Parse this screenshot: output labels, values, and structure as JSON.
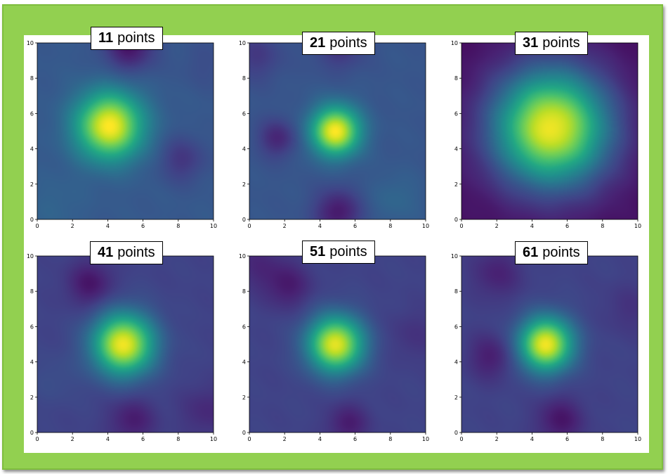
{
  "chart_data": [
    {
      "type": "heatmap",
      "title_number": "11",
      "title_unit": "points",
      "xlim": [
        0,
        10
      ],
      "ylim": [
        0,
        10
      ],
      "xticks": [
        "0",
        "2",
        "4",
        "6",
        "8",
        "10"
      ],
      "yticks": [
        "0",
        "2",
        "4",
        "6",
        "8",
        "10"
      ],
      "colormap": "viridis",
      "value_range": [
        0,
        1
      ],
      "background_level": 0.28,
      "features": [
        {
          "x": 4.1,
          "y": 5.3,
          "amplitude": 0.72,
          "spread": 1.3
        },
        {
          "x": 5.2,
          "y": 9.8,
          "amplitude": -0.22,
          "spread": 1.0
        },
        {
          "x": 8.2,
          "y": 3.4,
          "amplitude": -0.12,
          "spread": 0.9
        },
        {
          "x": 1.0,
          "y": 0.8,
          "amplitude": 0.04,
          "spread": 1.2
        },
        {
          "x": 9.5,
          "y": 8.8,
          "amplitude": -0.04,
          "spread": 1.0
        }
      ]
    },
    {
      "type": "heatmap",
      "title_number": "21",
      "title_unit": "points",
      "xlim": [
        0,
        10
      ],
      "ylim": [
        0,
        10
      ],
      "xticks": [
        "0",
        "2",
        "4",
        "6",
        "8",
        "10"
      ],
      "yticks": [
        "0",
        "2",
        "4",
        "6",
        "8",
        "10"
      ],
      "colormap": "viridis",
      "value_range": [
        0,
        1
      ],
      "background_level": 0.27,
      "features": [
        {
          "x": 4.9,
          "y": 5.0,
          "amplitude": 0.73,
          "spread": 0.95
        },
        {
          "x": 1.6,
          "y": 4.6,
          "amplitude": -0.16,
          "spread": 0.75
        },
        {
          "x": 5.0,
          "y": 0.4,
          "amplitude": -0.2,
          "spread": 0.9
        },
        {
          "x": 8.3,
          "y": 1.2,
          "amplitude": 0.06,
          "spread": 1.0
        },
        {
          "x": 5.1,
          "y": 9.9,
          "amplitude": -0.12,
          "spread": 1.0
        },
        {
          "x": 0.4,
          "y": 9.3,
          "amplitude": -0.1,
          "spread": 1.0
        }
      ]
    },
    {
      "type": "heatmap",
      "title_number": "31",
      "title_unit": "points",
      "xlim": [
        0,
        10
      ],
      "ylim": [
        0,
        10
      ],
      "xticks": [
        "0",
        "2",
        "4",
        "6",
        "8",
        "10"
      ],
      "yticks": [
        "0",
        "2",
        "4",
        "6",
        "8",
        "10"
      ],
      "colormap": "viridis",
      "value_range": [
        0,
        1
      ],
      "background_level": 0.04,
      "features": [
        {
          "x": 5.1,
          "y": 5.2,
          "amplitude": 0.94,
          "spread": 2.25
        }
      ]
    },
    {
      "type": "heatmap",
      "title_number": "41",
      "title_unit": "points",
      "xlim": [
        0,
        10
      ],
      "ylim": [
        0,
        10
      ],
      "xticks": [
        "0",
        "2",
        "4",
        "6",
        "8",
        "10"
      ],
      "yticks": [
        "0",
        "2",
        "4",
        "6",
        "8",
        "10"
      ],
      "colormap": "viridis",
      "value_range": [
        0,
        1
      ],
      "background_level": 0.2,
      "features": [
        {
          "x": 4.9,
          "y": 5.0,
          "amplitude": 0.78,
          "spread": 1.2
        },
        {
          "x": 3.0,
          "y": 8.4,
          "amplitude": -0.14,
          "spread": 0.9
        },
        {
          "x": 5.4,
          "y": 0.7,
          "amplitude": -0.12,
          "spread": 0.9
        },
        {
          "x": 1.0,
          "y": 3.0,
          "amplitude": 0.04,
          "spread": 1.0
        },
        {
          "x": 9.6,
          "y": 1.2,
          "amplitude": -0.08,
          "spread": 1.0
        }
      ]
    },
    {
      "type": "heatmap",
      "title_number": "51",
      "title_unit": "points",
      "xlim": [
        0,
        10
      ],
      "ylim": [
        0,
        10
      ],
      "xticks": [
        "0",
        "2",
        "4",
        "6",
        "8",
        "10"
      ],
      "yticks": [
        "0",
        "2",
        "4",
        "6",
        "8",
        "10"
      ],
      "colormap": "viridis",
      "value_range": [
        0,
        1
      ],
      "background_level": 0.2,
      "features": [
        {
          "x": 4.9,
          "y": 5.0,
          "amplitude": 0.76,
          "spread": 1.1
        },
        {
          "x": 2.2,
          "y": 8.3,
          "amplitude": -0.12,
          "spread": 0.9
        },
        {
          "x": 5.6,
          "y": 0.5,
          "amplitude": -0.12,
          "spread": 0.8
        },
        {
          "x": 0.5,
          "y": 9.5,
          "amplitude": -0.08,
          "spread": 1.0
        },
        {
          "x": 9.3,
          "y": 5.5,
          "amplitude": -0.05,
          "spread": 1.0
        }
      ]
    },
    {
      "type": "heatmap",
      "title_number": "61",
      "title_unit": "points",
      "xlim": [
        0,
        10
      ],
      "ylim": [
        0,
        10
      ],
      "xticks": [
        "0",
        "2",
        "4",
        "6",
        "8",
        "10"
      ],
      "yticks": [
        "0",
        "2",
        "4",
        "6",
        "8",
        "10"
      ],
      "colormap": "viridis",
      "value_range": [
        0,
        1
      ],
      "background_level": 0.2,
      "features": [
        {
          "x": 4.8,
          "y": 5.0,
          "amplitude": 0.78,
          "spread": 1.05
        },
        {
          "x": 1.7,
          "y": 4.3,
          "amplitude": -0.12,
          "spread": 0.9
        },
        {
          "x": 5.6,
          "y": 0.7,
          "amplitude": -0.14,
          "spread": 0.9
        },
        {
          "x": 2.0,
          "y": 9.0,
          "amplitude": -0.1,
          "spread": 1.0
        },
        {
          "x": 9.5,
          "y": 7.0,
          "amplitude": -0.05,
          "spread": 1.0
        }
      ]
    }
  ]
}
